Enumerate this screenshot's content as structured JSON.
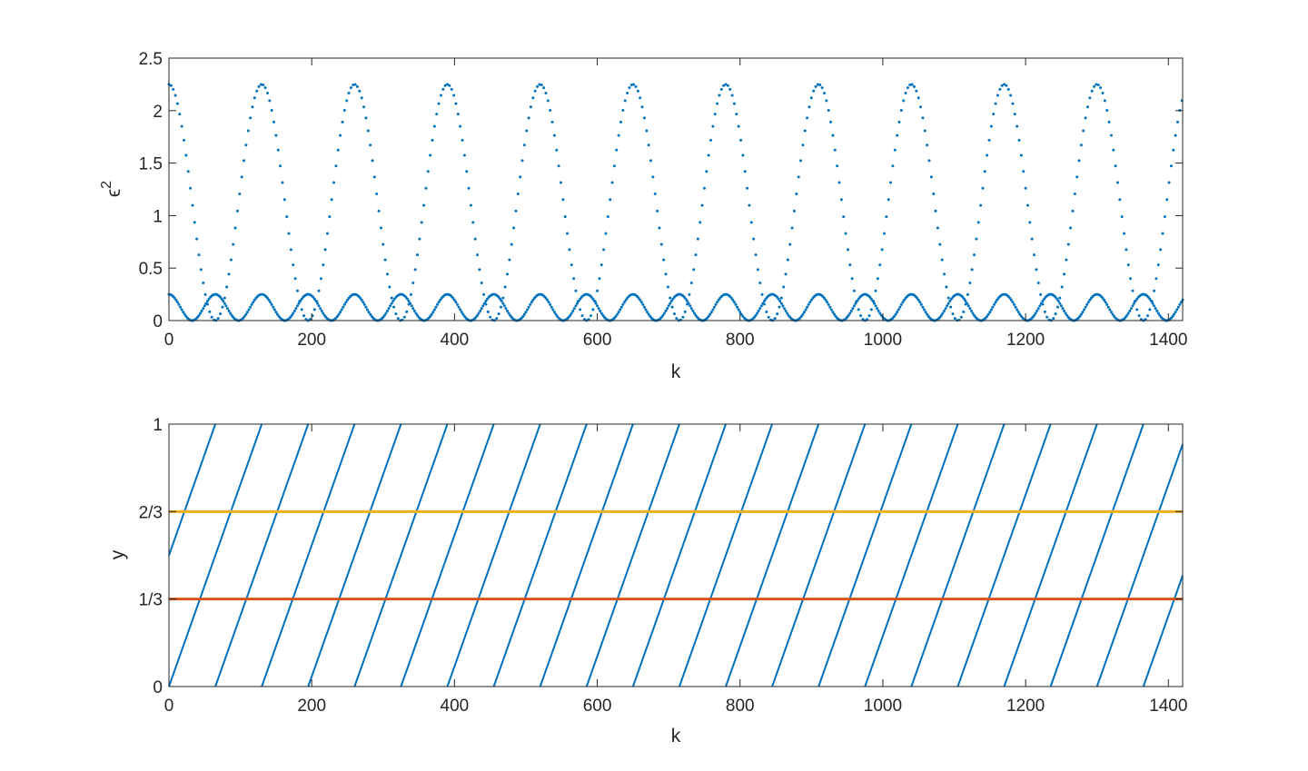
{
  "chart_data": [
    {
      "type": "scatter",
      "xlabel": "k",
      "ylabel": "ϵ",
      "ylabel_superscript": "2",
      "xlim": [
        0,
        1420
      ],
      "ylim": [
        0,
        2.5
      ],
      "xticks": [
        0,
        200,
        400,
        600,
        800,
        1000,
        1200,
        1400
      ],
      "xtick_labels": [
        "0",
        "200",
        "400",
        "600",
        "800",
        "1000",
        "1200",
        "1400"
      ],
      "yticks": [
        0,
        0.5,
        1,
        1.5,
        2,
        2.5
      ],
      "ytick_labels": [
        "0",
        "0.5",
        "1",
        "1.5",
        "2",
        "2.5"
      ],
      "color": "#0072BD",
      "series": [
        {
          "amplitude": 2.25,
          "period": 130,
          "function": "amplitude*cos^2(pi*k/period)",
          "k_range": [
            0,
            1420
          ],
          "k_step": 3
        },
        {
          "amplitude": 0.25,
          "period": 130,
          "function": "amplitude*cos^2(2*pi*k/period)",
          "k_range": [
            0,
            1420
          ],
          "k_step": 2
        }
      ]
    },
    {
      "type": "line",
      "xlabel": "k",
      "ylabel": "y",
      "xlim": [
        0,
        1420
      ],
      "ylim": [
        0,
        1
      ],
      "xticks": [
        0,
        200,
        400,
        600,
        800,
        1000,
        1200,
        1400
      ],
      "xtick_labels": [
        "0",
        "200",
        "400",
        "600",
        "800",
        "1000",
        "1200",
        "1400"
      ],
      "yticks": [
        0,
        0.3333,
        0.6667,
        1
      ],
      "ytick_labels": [
        "0",
        "1/3",
        "2/3",
        "1"
      ],
      "sawtooth": {
        "color": "#0072BD",
        "period": 130,
        "function": "fractional part of k/period",
        "phase_offsets": [
          0,
          0.5
        ]
      },
      "hlines": [
        {
          "y": 0.6667,
          "color": "#EDB120"
        },
        {
          "y": 0.3333,
          "color": "#D95319"
        }
      ]
    }
  ]
}
